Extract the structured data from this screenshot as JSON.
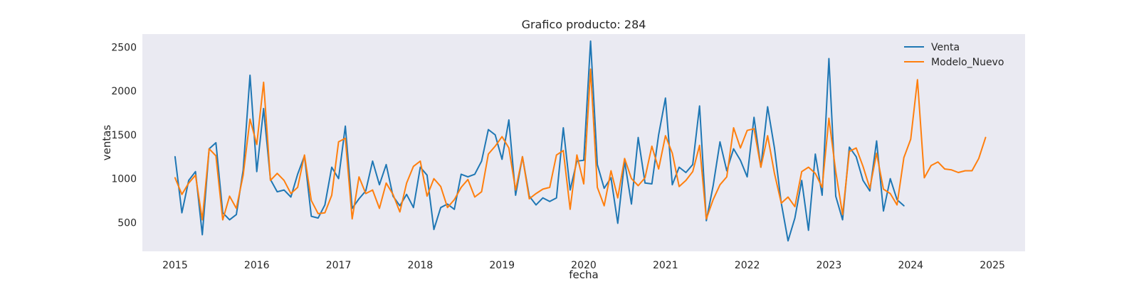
{
  "chart_data": {
    "type": "line",
    "title": "Grafico producto: 284",
    "xlabel": "fecha",
    "ylabel": "ventas",
    "x_start": "2015-01",
    "x_frequency": "monthly",
    "xlim": [
      2014.6,
      2025.4
    ],
    "ylim": [
      170,
      2650
    ],
    "xticks": [
      "2015",
      "2016",
      "2017",
      "2018",
      "2019",
      "2020",
      "2021",
      "2022",
      "2023",
      "2024",
      "2025"
    ],
    "yticks": [
      500,
      1000,
      1500,
      2000,
      2500
    ],
    "grid": false,
    "legend_position": "top-right",
    "series": [
      {
        "name": "Venta",
        "color": "#1f77b4",
        "values": [
          1250,
          610,
          980,
          1080,
          360,
          1340,
          1410,
          610,
          530,
          590,
          1100,
          2180,
          1080,
          1800,
          990,
          850,
          870,
          790,
          1050,
          1260,
          570,
          550,
          700,
          1130,
          1000,
          1600,
          660,
          770,
          860,
          1200,
          930,
          1160,
          800,
          690,
          820,
          670,
          1130,
          1040,
          420,
          670,
          710,
          650,
          1050,
          1020,
          1050,
          1200,
          1560,
          1500,
          1220,
          1670,
          810,
          1250,
          800,
          700,
          780,
          740,
          780,
          1580,
          870,
          1200,
          1210,
          2570,
          1160,
          890,
          1010,
          490,
          1200,
          710,
          1470,
          950,
          940,
          1500,
          1920,
          930,
          1130,
          1070,
          1160,
          1830,
          520,
          920,
          1420,
          1090,
          1340,
          1210,
          1020,
          1700,
          1130,
          1820,
          1350,
          720,
          290,
          550,
          980,
          410,
          1280,
          810,
          2370,
          800,
          530,
          1360,
          1250,
          980,
          860,
          1430,
          630,
          1000,
          760,
          690
        ]
      },
      {
        "name": "Modelo_Nuevo",
        "color": "#ff7f0e",
        "values": [
          1010,
          820,
          950,
          1040,
          530,
          1340,
          1260,
          530,
          800,
          660,
          1040,
          1680,
          1390,
          2100,
          980,
          1060,
          980,
          830,
          900,
          1270,
          750,
          600,
          610,
          810,
          1420,
          1460,
          540,
          1020,
          830,
          870,
          660,
          950,
          820,
          620,
          950,
          1140,
          1200,
          800,
          1000,
          910,
          670,
          760,
          900,
          990,
          790,
          850,
          1280,
          1370,
          1480,
          1350,
          870,
          1250,
          770,
          830,
          880,
          900,
          1270,
          1320,
          650,
          1270,
          940,
          2250,
          900,
          690,
          1090,
          780,
          1230,
          1000,
          920,
          1010,
          1370,
          1110,
          1490,
          1290,
          910,
          980,
          1080,
          1380,
          540,
          760,
          930,
          1020,
          1580,
          1350,
          1550,
          1570,
          1130,
          1490,
          1060,
          720,
          790,
          680,
          1080,
          1130,
          1060,
          900,
          1690,
          1080,
          590,
          1310,
          1350,
          1140,
          890,
          1290,
          880,
          830,
          700,
          1240,
          1450,
          2130,
          1010,
          1150,
          1190,
          1110,
          1100,
          1070,
          1090,
          1090,
          1230,
          1470
        ]
      }
    ]
  }
}
